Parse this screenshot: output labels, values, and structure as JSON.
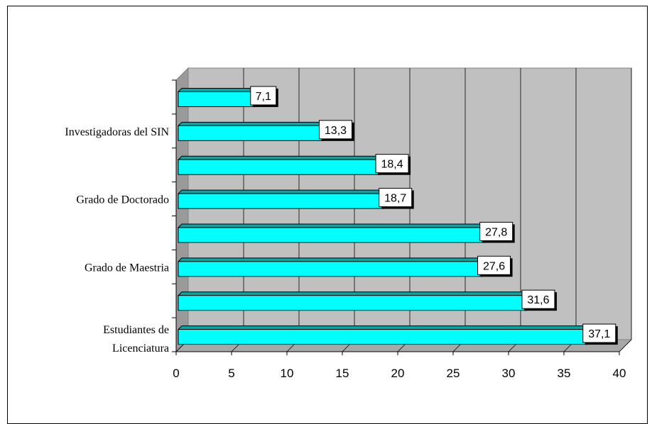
{
  "chart_data": {
    "type": "bar",
    "orientation": "horizontal",
    "three_d": true,
    "bar_color": "#00FFFF",
    "wall_color": "#C0C0C0",
    "grid": true,
    "xlim": [
      0,
      40
    ],
    "x_ticks": [
      "0",
      "5",
      "10",
      "15",
      "20",
      "25",
      "30",
      "35",
      "40"
    ],
    "categories": [
      "Estudiantes de Licenciatura",
      "",
      "Grado de Maestria",
      "",
      "Grado de Doctorado",
      "",
      "Investigadoras del SIN",
      ""
    ],
    "category_lines": [
      [
        "Estudiantes de",
        "Licenciatura"
      ],
      [],
      [
        "Grado de Maestria"
      ],
      [],
      [
        "Grado de Doctorado"
      ],
      [],
      [
        "Investigadoras del SIN"
      ],
      []
    ],
    "values": [
      37.1,
      31.6,
      27.6,
      27.8,
      18.7,
      18.4,
      13.3,
      7.1
    ],
    "value_labels": [
      "37,1",
      "31,6",
      "27,6",
      "27,8",
      "18,7",
      "18,4",
      "13,3",
      "7,1"
    ]
  }
}
